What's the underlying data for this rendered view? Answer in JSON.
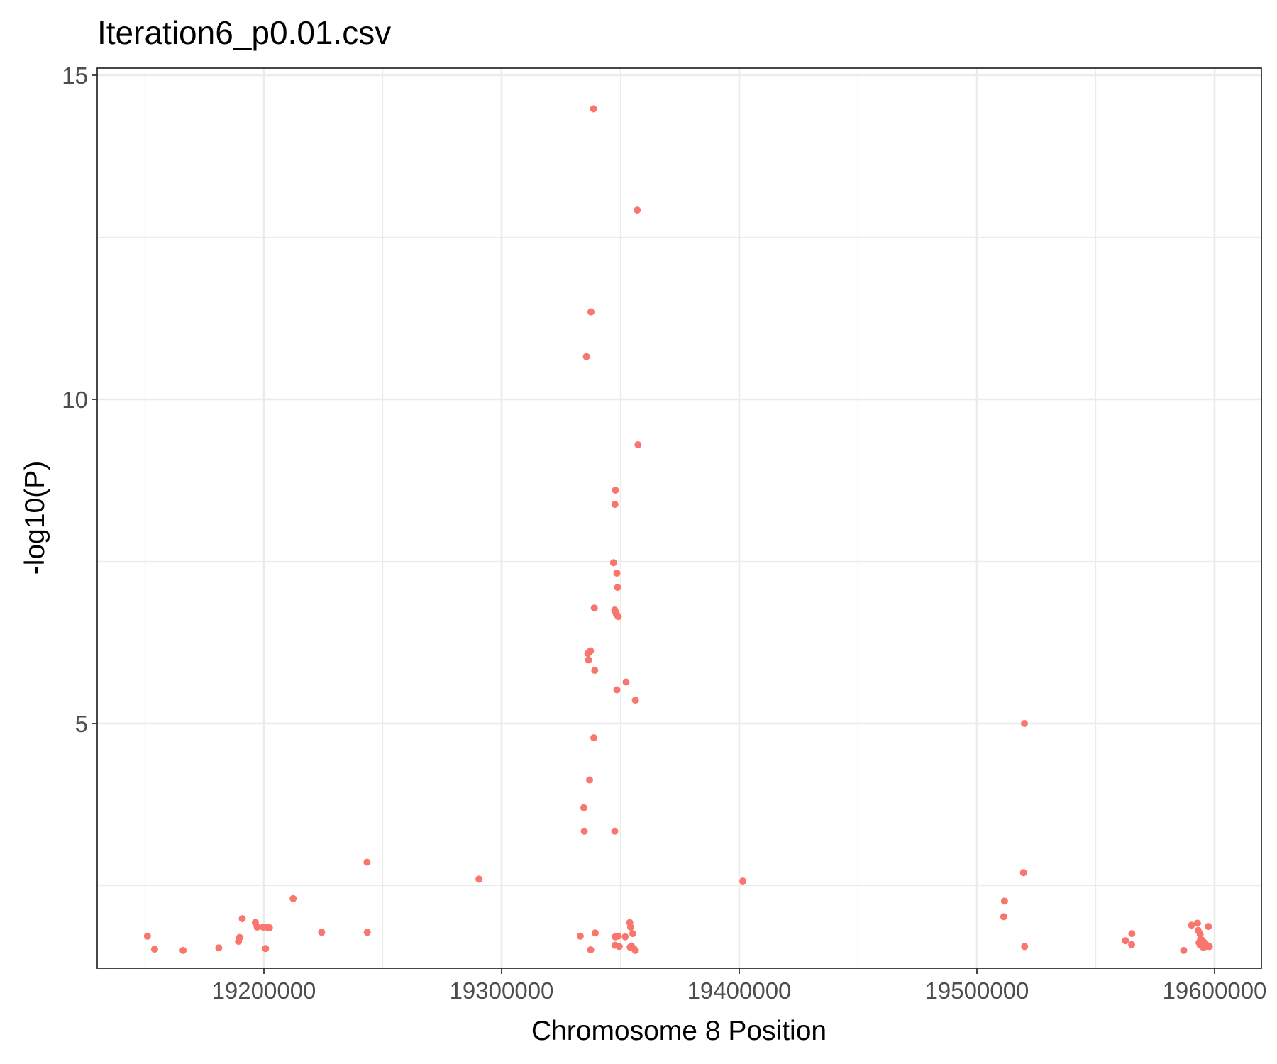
{
  "chart_data": {
    "type": "scatter",
    "title": "Iteration6_p0.01.csv",
    "xlabel": "Chromosome 8 Position",
    "ylabel": "-log10(P)",
    "xlim": [
      19130000,
      19620000
    ],
    "ylim": [
      1.25,
      15.0
    ],
    "x_ticks": [
      19200000,
      19300000,
      19400000,
      19500000,
      19600000
    ],
    "x_tick_labels": [
      "19200000",
      "19300000",
      "19400000",
      "19500000",
      "19600000"
    ],
    "y_ticks": [
      5,
      10,
      15
    ],
    "y_tick_labels": [
      "5",
      "10",
      "15"
    ],
    "grid": true,
    "point_color": "#F8766D",
    "x": [
      19338700,
      19357100,
      19337600,
      19335700,
      19357400,
      19347900,
      19347700,
      19347100,
      19348500,
      19348800,
      19339000,
      19347600,
      19348000,
      19348400,
      19349100,
      19336800,
      19337400,
      19336300,
      19336600,
      19339200,
      19352400,
      19348500,
      19356300,
      19338800,
      19337000,
      19334600,
      19334800,
      19347600,
      19243400,
      19290500,
      19401500,
      19151000,
      19154000,
      19166000,
      19181000,
      19189800,
      19189300,
      19190900,
      19196400,
      19197200,
      19199700,
      19201200,
      19202300,
      19200700,
      19212300,
      19224300,
      19243500,
      19333100,
      19339400,
      19337500,
      19347800,
      19349000,
      19347700,
      19349500,
      19352000,
      19353900,
      19354300,
      19355200,
      19354600,
      19354100,
      19355600,
      19356300,
      19520000,
      19511600,
      19511300,
      19519600,
      19520100,
      19562500,
      19565200,
      19565100,
      19587000,
      19590300,
      19592800,
      19593100,
      19593900,
      19594100,
      19594700,
      19595700,
      19596200,
      19597400,
      19597800,
      19594000,
      19595200,
      19596400,
      19593500
    ],
    "y": [
      14.48,
      12.92,
      11.35,
      10.66,
      9.3,
      8.6,
      8.38,
      7.48,
      7.32,
      7.1,
      6.78,
      6.75,
      6.72,
      6.68,
      6.65,
      6.1,
      6.12,
      6.08,
      5.98,
      5.82,
      5.64,
      5.52,
      5.36,
      4.78,
      4.13,
      3.7,
      3.34,
      3.34,
      2.86,
      2.6,
      2.57,
      1.72,
      1.52,
      1.5,
      1.54,
      1.7,
      1.64,
      1.99,
      1.93,
      1.86,
      1.86,
      1.86,
      1.85,
      1.53,
      2.3,
      1.78,
      1.78,
      1.72,
      1.77,
      1.51,
      1.71,
      1.72,
      1.58,
      1.56,
      1.71,
      1.93,
      1.86,
      1.76,
      1.57,
      1.55,
      1.53,
      1.5,
      5.0,
      2.26,
      2.02,
      2.7,
      1.56,
      1.65,
      1.76,
      1.59,
      1.5,
      1.89,
      1.92,
      1.81,
      1.75,
      1.67,
      1.66,
      1.62,
      1.6,
      1.87,
      1.56,
      1.58,
      1.55,
      1.56,
      1.62
    ]
  }
}
